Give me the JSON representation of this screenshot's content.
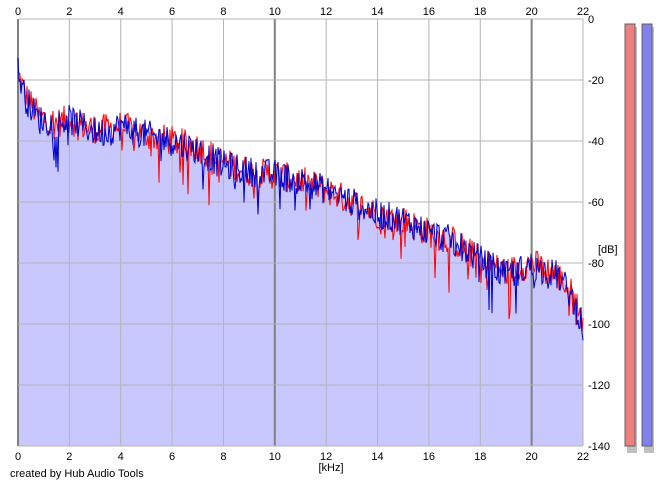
{
  "credit": "created by Hub Audio Tools",
  "chart_data": {
    "type": "line",
    "xlabel": "[kHz]",
    "ylabel": "[dB]",
    "xlim": [
      0,
      22
    ],
    "ylim": [
      -140,
      0
    ],
    "x_ticks": [
      0,
      2,
      4,
      6,
      8,
      10,
      12,
      14,
      16,
      18,
      20,
      22
    ],
    "y_ticks": [
      0,
      -20,
      -40,
      -60,
      -80,
      -100,
      -120,
      -140
    ],
    "grid": true,
    "fill_color": "#c8c8ff",
    "series": [
      {
        "color": "#ff0000",
        "x": [
          0,
          0.3,
          0.8,
          1.5,
          2.0,
          2.5,
          3.0,
          3.5,
          4.0,
          5.0,
          6.0,
          7.0,
          8.0,
          9.0,
          10.0,
          11.0,
          12.0,
          13.0,
          14.0,
          15.0,
          16.0,
          17.0,
          18.0,
          19.0,
          20.0,
          21.0,
          21.5,
          22.0
        ],
        "y": [
          -18,
          -25,
          -32,
          -34,
          -33,
          -35,
          -36,
          -36,
          -35,
          -38,
          -40,
          -42,
          -47,
          -50,
          -51,
          -53,
          -56,
          -60,
          -64,
          -66,
          -70,
          -73,
          -79,
          -83,
          -80,
          -84,
          -89,
          -99
        ]
      },
      {
        "color": "#0000cc",
        "x": [
          0,
          0.3,
          0.8,
          1.5,
          2.0,
          2.5,
          3.0,
          3.5,
          4.0,
          5.0,
          6.0,
          7.0,
          8.0,
          9.0,
          10.0,
          11.0,
          12.0,
          13.0,
          14.0,
          15.0,
          16.0,
          17.0,
          18.0,
          19.0,
          20.0,
          21.0,
          21.5,
          22.0
        ],
        "y": [
          -17,
          -26,
          -33,
          -34,
          -33,
          -35,
          -37,
          -37,
          -35,
          -38,
          -40,
          -43,
          -48,
          -50,
          -51,
          -53,
          -56,
          -60,
          -64,
          -66,
          -70,
          -73,
          -79,
          -84,
          -81,
          -84,
          -90,
          -100
        ]
      }
    ]
  },
  "meters": [
    {
      "color": "#f08080"
    },
    {
      "color": "#8080ee"
    }
  ]
}
